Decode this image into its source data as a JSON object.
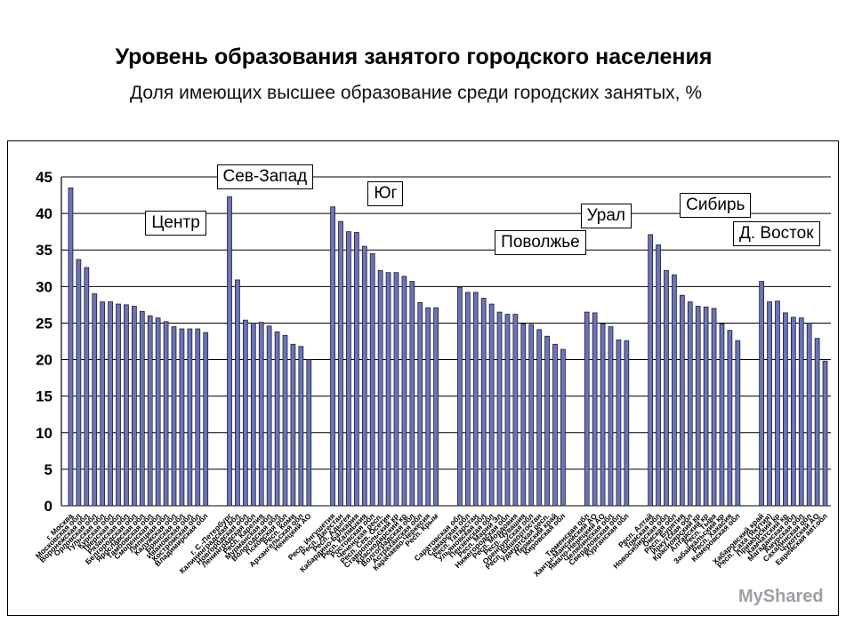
{
  "title": "Уровень образования занятого городского населения",
  "subtitle": "Доля имеющих высшее образование среди городских занятых, %",
  "chart_data": {
    "type": "bar",
    "ylim": [
      0,
      45
    ],
    "yticks": [
      0,
      5,
      10,
      15,
      20,
      25,
      30,
      35,
      40,
      45
    ],
    "grid": true,
    "bar_color": "#6b74b4",
    "groups": [
      {
        "name": "Центр",
        "categories": [
          "г. Москва",
          "Московская обл",
          "Воронежская обл",
          "Орловская обл",
          "Тульская обл",
          "Курская обл",
          "Тверская обл",
          "Рязанская обл",
          "Белгородская обл",
          "Ярославская обл",
          "Тамбовская обл",
          "Смоленская обл",
          "Липецкая обл",
          "Калужская обл",
          "Брянская обл",
          "Ивановская обл",
          "Костромская обл",
          "Владимирская обл"
        ],
        "values": [
          43.5,
          33.7,
          32.6,
          29.0,
          27.9,
          27.9,
          27.6,
          27.5,
          27.3,
          26.6,
          26.0,
          25.7,
          25.2,
          24.5,
          24.2,
          24.2,
          24.2,
          23.7
        ]
      },
      {
        "name": "Сев-Запад",
        "categories": [
          "г. С.-Петербург",
          "Калининградская обл",
          "Новгородская обл",
          "Ленинградская обл",
          "Респ. Карелия",
          "Мурманская обл",
          "Вологодская обл",
          "Псковская обл",
          "Респ. Коми",
          "Архангельская обл",
          "Ненецкий АО"
        ],
        "values": [
          42.3,
          30.9,
          25.4,
          25.0,
          25.1,
          24.6,
          23.8,
          23.3,
          22.1,
          21.8,
          20.0
        ]
      },
      {
        "name": "Юг",
        "categories": [
          "Респ. Ингушетия",
          "Респ. Дагестан",
          "Респ. Адыгея",
          "Кабардино-Балкария",
          "Респ. Калмыкия",
          "Ростовская обл",
          "Чеченская респ.",
          "Респ. Сев. Осетия",
          "Ставропольский кр",
          "Краснодарский кр",
          "Волгоградская обл",
          "Астраханская обл",
          "Карачаево-Черкесия",
          "Респ. Крым"
        ],
        "values": [
          40.9,
          38.9,
          37.5,
          37.4,
          35.5,
          34.5,
          32.2,
          31.9,
          31.9,
          31.4,
          30.7,
          27.8,
          27.1,
          27.1
        ]
      },
      {
        "name": "Поволжье",
        "categories": [
          "Саратовская обл",
          "Самарская обл",
          "Респ. Татарстан",
          "Ульяновская обл",
          "Пензенская обл",
          "Респ. Марий Эл",
          "Нижегородская обл",
          "Респ. Мордовия",
          "Респ. Чувашия",
          "Оренбургская обл",
          "Респ. Башкортостан",
          "Удмуртская респ.",
          "Пермский край",
          "Кировская обл"
        ],
        "values": [
          29.9,
          29.2,
          29.2,
          28.4,
          27.6,
          26.5,
          26.2,
          26.2,
          24.9,
          24.8,
          24.1,
          23.2,
          22.1,
          21.4
        ]
      },
      {
        "name": "Урал",
        "categories": [
          "Тюменская обл",
          "Ханты-Мансийский АО",
          "Ямало-Ненецкий АО",
          "Челябинская обл",
          "Свердловская обл",
          "Курганская обл"
        ],
        "values": [
          26.5,
          26.4,
          24.9,
          24.5,
          22.7,
          22.6
        ]
      },
      {
        "name": "Сибирь",
        "categories": [
          "Респ. Алтай",
          "Томская обл",
          "Новосибирская обл",
          "Омская обл",
          "Респ. Бурятия",
          "Иркутская обл",
          "Красноярский кр",
          "Алтайский кр",
          "Респ. Тыва",
          "Забайкальский кр",
          "Респ. Хакасия",
          "Кемеровская обл"
        ],
        "values": [
          37.1,
          35.7,
          32.2,
          31.6,
          28.8,
          27.9,
          27.3,
          27.2,
          27.0,
          24.9,
          24.0,
          22.6
        ]
      },
      {
        "name": "Д. Восток",
        "categories": [
          "Хабаровский край",
          "Респ. Саха (Якутия)",
          "Приморский кр",
          "Камчатский кр",
          "Магаданская обл",
          "Амурская обл",
          "Сахалинская обл",
          "Чукотский АО",
          "Еврейская авт.обл"
        ],
        "values": [
          30.7,
          27.9,
          28.0,
          26.4,
          25.8,
          25.7,
          25.0,
          22.9,
          19.8
        ]
      }
    ]
  },
  "watermark": "MyShared"
}
